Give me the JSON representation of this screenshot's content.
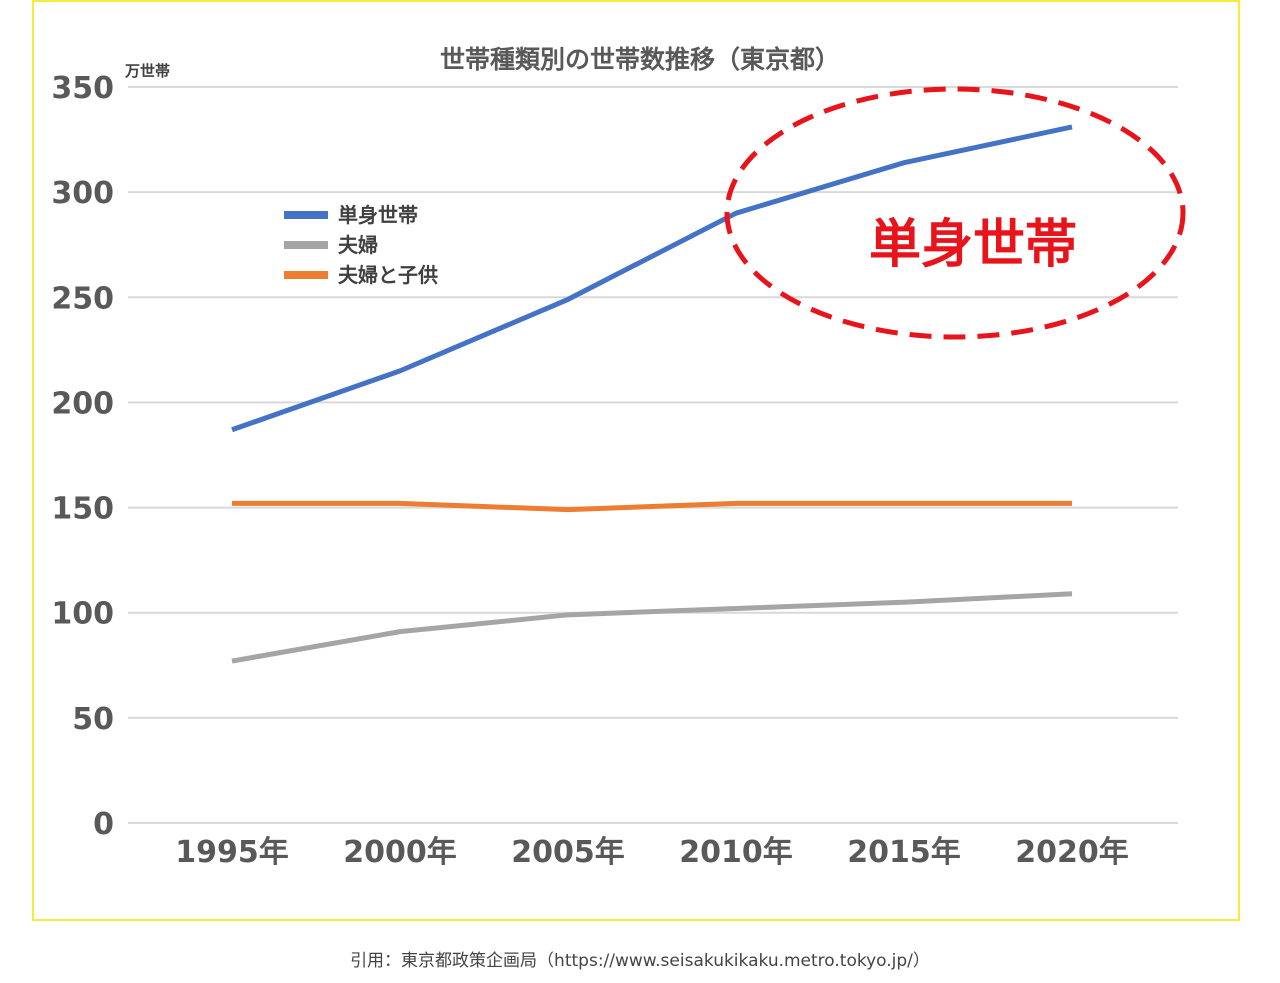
{
  "chart_data": {
    "type": "line",
    "title": "世帯種類別の世帯数推移（東京都）",
    "ylabel": "万世帯",
    "xlabel": "",
    "categories": [
      "1995年",
      "2000年",
      "2005年",
      "2010年",
      "2015年",
      "2020年"
    ],
    "ylim": [
      0,
      350
    ],
    "yticks": [
      0,
      50,
      100,
      150,
      200,
      250,
      300,
      350
    ],
    "grid": true,
    "legend_position": "upper-left",
    "series": [
      {
        "name": "単身世帯",
        "color": "#4472c4",
        "values": [
          187,
          215,
          249,
          290,
          314,
          331
        ]
      },
      {
        "name": "夫婦",
        "color": "#a5a5a5",
        "values": [
          77,
          91,
          99,
          102,
          105,
          109
        ]
      },
      {
        "name": "夫婦と子供",
        "color": "#ed7d31",
        "values": [
          152,
          152,
          149,
          152,
          152,
          152
        ]
      }
    ],
    "annotation": {
      "text": "単身世帯",
      "color": "#e8141b",
      "shape": "dashed-ellipse"
    }
  },
  "caption": "引用：東京都政策企画局（https://www.seisakukikaku.metro.tokyo.jp/）",
  "colors": {
    "border": "#f5ec3c",
    "grid": "#d9d9d9",
    "text": "#595959"
  }
}
